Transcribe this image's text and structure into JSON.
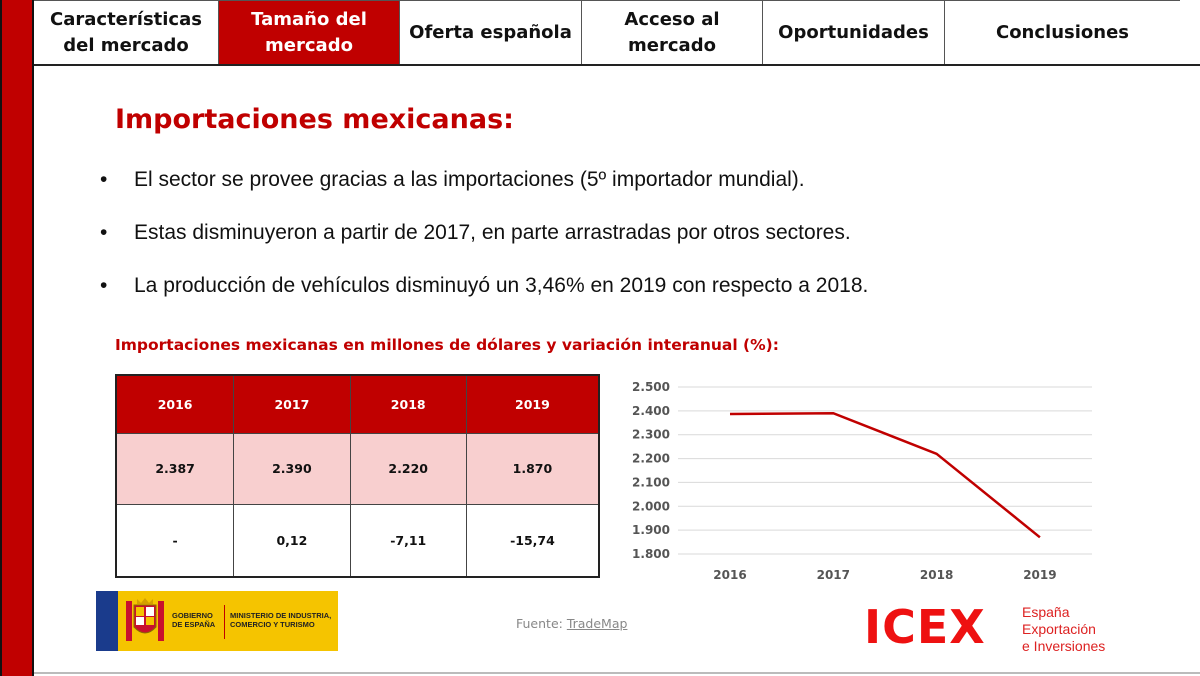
{
  "nav": {
    "tabs": [
      {
        "label": "Características del mercado",
        "active": false
      },
      {
        "label": "Tamaño del mercado",
        "active": true
      },
      {
        "label": "Oferta española",
        "active": false
      },
      {
        "label": "Acceso al mercado",
        "active": false
      },
      {
        "label": "Oportunidades",
        "active": false
      },
      {
        "label": "Conclusiones",
        "active": false
      }
    ]
  },
  "title": "Importaciones mexicanas:",
  "bullets": [
    "El sector se provee gracias a las importaciones (5º importador mundial).",
    "Estas disminuyeron a partir de 2017, en parte arrastradas por otros sectores.",
    "La producción de vehículos disminuyó un 3,46% en 2019 con respecto a 2018."
  ],
  "bullet_symbol": "•",
  "subtitle": "Importaciones mexicanas en millones de dólares y variación interanual (%):",
  "table": {
    "headers": [
      "2016",
      "2017",
      "2018",
      "2019"
    ],
    "rows": [
      [
        "2.387",
        "2.390",
        "2.220",
        "1.870"
      ],
      [
        "-",
        "0,12",
        "-7,11",
        "-15,74"
      ]
    ]
  },
  "chart_data": {
    "type": "line",
    "categories": [
      "2016",
      "2017",
      "2018",
      "2019"
    ],
    "series": [
      {
        "values": [
          2387,
          2390,
          2220,
          1870
        ]
      }
    ],
    "ylim": [
      1800,
      2500
    ],
    "yticks": [
      1800,
      1900,
      2000,
      2100,
      2200,
      2300,
      2400,
      2500
    ],
    "ytick_labels": [
      "1.800",
      "1.900",
      "2.000",
      "2.100",
      "2.200",
      "2.300",
      "2.400",
      "2.500"
    ],
    "grid": true,
    "line_color": "#c00000"
  },
  "footer": {
    "gov_line1": "GOBIERNO DE ESPAÑA",
    "gov_line2": "MINISTERIO DE INDUSTRIA, COMERCIO Y TURISMO",
    "source_prefix": "Fuente: ",
    "source_link": "TradeMap",
    "icex_logo": "ICEX",
    "icex_line1": "España",
    "icex_line2": "Exportación",
    "icex_line3": "e Inversiones"
  },
  "colors": {
    "brand_red": "#c00000",
    "table_row_fill": "#f8cfcf",
    "gov_yellow": "#f5c400"
  }
}
